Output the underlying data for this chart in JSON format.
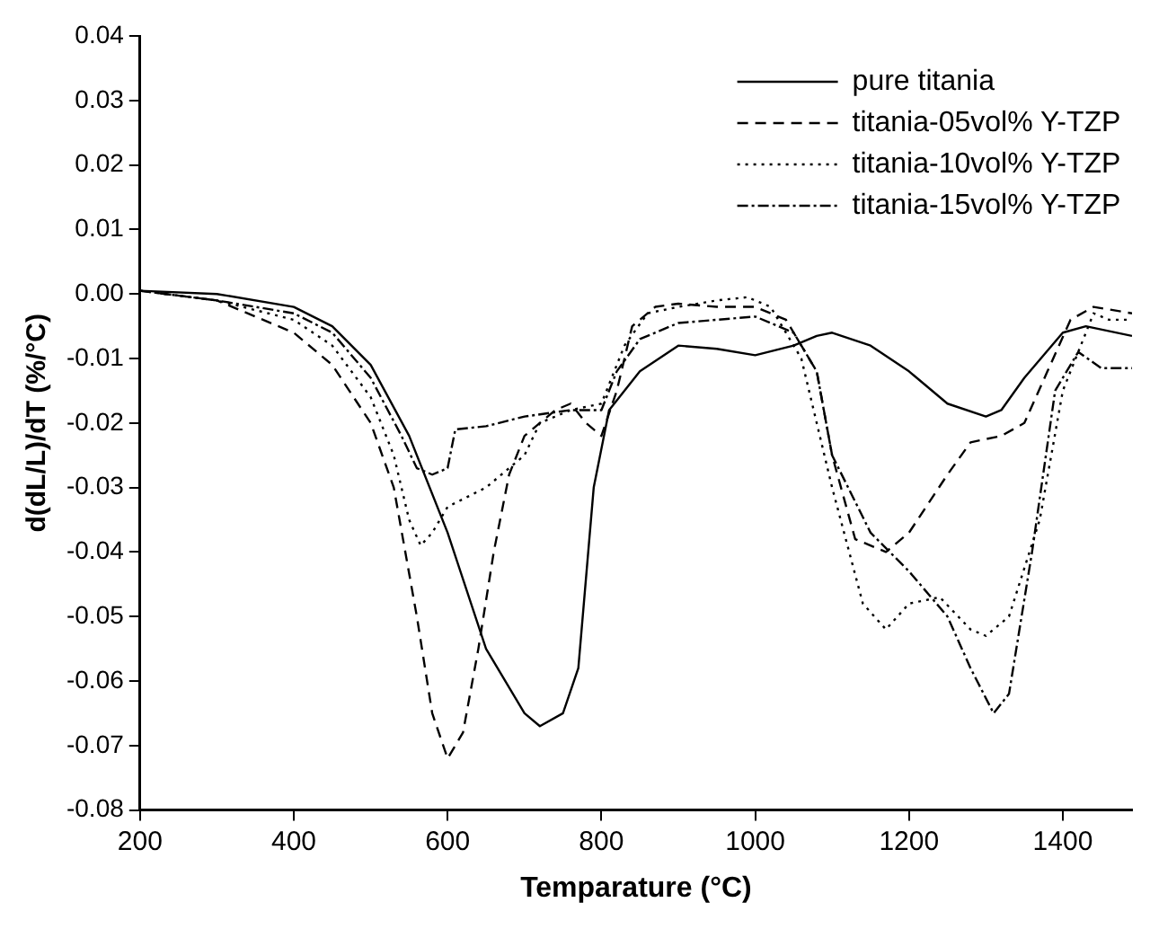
{
  "chart_data": {
    "type": "line",
    "xlabel": "Temparature (°C)",
    "ylabel": "d(dL/L)/dT (%/°C)",
    "xlim": [
      200,
      1490
    ],
    "xticks": [
      200,
      400,
      600,
      800,
      1000,
      1200,
      1400
    ],
    "ylim": [
      -0.08,
      0.04
    ],
    "yticks": [
      -0.08,
      -0.07,
      -0.06,
      -0.05,
      -0.04,
      -0.03,
      -0.02,
      -0.01,
      {
        "value": 0,
        "label": "0.00"
      },
      0.01,
      0.02,
      0.03,
      0.04
    ],
    "grid": false,
    "legend": "top right",
    "marker": "none",
    "series": [
      {
        "name": "pure titania",
        "color": "#000000",
        "line_style": "solid",
        "x": [
          200,
          300,
          400,
          450,
          500,
          550,
          600,
          650,
          700,
          720,
          750,
          770,
          790,
          810,
          850,
          900,
          950,
          1000,
          1050,
          1080,
          1100,
          1150,
          1200,
          1250,
          1300,
          1320,
          1350,
          1400,
          1430,
          1490
        ],
        "values": [
          0.0005,
          0,
          -0.002,
          -0.005,
          -0.011,
          -0.022,
          -0.037,
          -0.055,
          -0.065,
          -0.067,
          -0.065,
          -0.058,
          -0.03,
          -0.018,
          -0.012,
          -0.008,
          -0.0085,
          -0.0095,
          -0.008,
          -0.0065,
          -0.006,
          -0.008,
          -0.012,
          -0.017,
          -0.019,
          -0.018,
          -0.013,
          -0.006,
          -0.005,
          -0.0065
        ]
      },
      {
        "name": "titania-05vol% Y-TZP",
        "color": "#000000",
        "line_style": "dashed",
        "x": [
          200,
          300,
          400,
          450,
          500,
          530,
          560,
          580,
          600,
          620,
          640,
          660,
          680,
          700,
          740,
          760,
          780,
          800,
          820,
          840,
          870,
          900,
          950,
          1000,
          1040,
          1080,
          1100,
          1130,
          1170,
          1200,
          1250,
          1280,
          1320,
          1350,
          1380,
          1410,
          1440,
          1490
        ],
        "values": [
          0.0005,
          -0.001,
          -0.006,
          -0.011,
          -0.02,
          -0.03,
          -0.05,
          -0.065,
          -0.072,
          -0.068,
          -0.055,
          -0.04,
          -0.028,
          -0.022,
          -0.018,
          -0.017,
          -0.02,
          -0.022,
          -0.015,
          -0.005,
          -0.002,
          -0.0015,
          -0.002,
          -0.002,
          -0.004,
          -0.012,
          -0.025,
          -0.038,
          -0.04,
          -0.037,
          -0.028,
          -0.023,
          -0.022,
          -0.02,
          -0.012,
          -0.004,
          -0.002,
          -0.003
        ]
      },
      {
        "name": "titania-10vol% Y-TZP",
        "color": "#000000",
        "line_style": "dotted",
        "x": [
          200,
          300,
          400,
          450,
          500,
          530,
          550,
          565,
          580,
          600,
          650,
          680,
          700,
          720,
          760,
          800,
          830,
          860,
          900,
          950,
          990,
          1020,
          1060,
          1100,
          1140,
          1170,
          1200,
          1240,
          1280,
          1300,
          1330,
          1370,
          1400,
          1440,
          1460,
          1490
        ],
        "values": [
          0.0005,
          -0.001,
          -0.004,
          -0.008,
          -0.016,
          -0.025,
          -0.035,
          -0.039,
          -0.037,
          -0.033,
          -0.03,
          -0.027,
          -0.025,
          -0.02,
          -0.018,
          -0.017,
          -0.008,
          -0.003,
          -0.002,
          -0.001,
          -0.0005,
          -0.002,
          -0.01,
          -0.03,
          -0.048,
          -0.052,
          -0.048,
          -0.047,
          -0.052,
          -0.053,
          -0.05,
          -0.035,
          -0.015,
          -0.003,
          -0.004,
          -0.004
        ]
      },
      {
        "name": "titania-15vol% Y-TZP",
        "color": "#000000",
        "line_style": "dashdot",
        "x": [
          200,
          300,
          400,
          450,
          500,
          540,
          560,
          580,
          600,
          610,
          650,
          700,
          760,
          800,
          820,
          850,
          900,
          950,
          1000,
          1050,
          1080,
          1100,
          1150,
          1200,
          1250,
          1280,
          1310,
          1330,
          1360,
          1390,
          1420,
          1450,
          1490
        ],
        "values": [
          0.0005,
          -0.001,
          -0.003,
          -0.006,
          -0.013,
          -0.022,
          -0.027,
          -0.028,
          -0.027,
          -0.021,
          -0.0205,
          -0.019,
          -0.018,
          -0.018,
          -0.012,
          -0.007,
          -0.0045,
          -0.004,
          -0.0035,
          -0.006,
          -0.012,
          -0.025,
          -0.037,
          -0.043,
          -0.05,
          -0.058,
          -0.065,
          -0.062,
          -0.04,
          -0.015,
          -0.009,
          -0.0115,
          -0.0115
        ]
      }
    ]
  }
}
